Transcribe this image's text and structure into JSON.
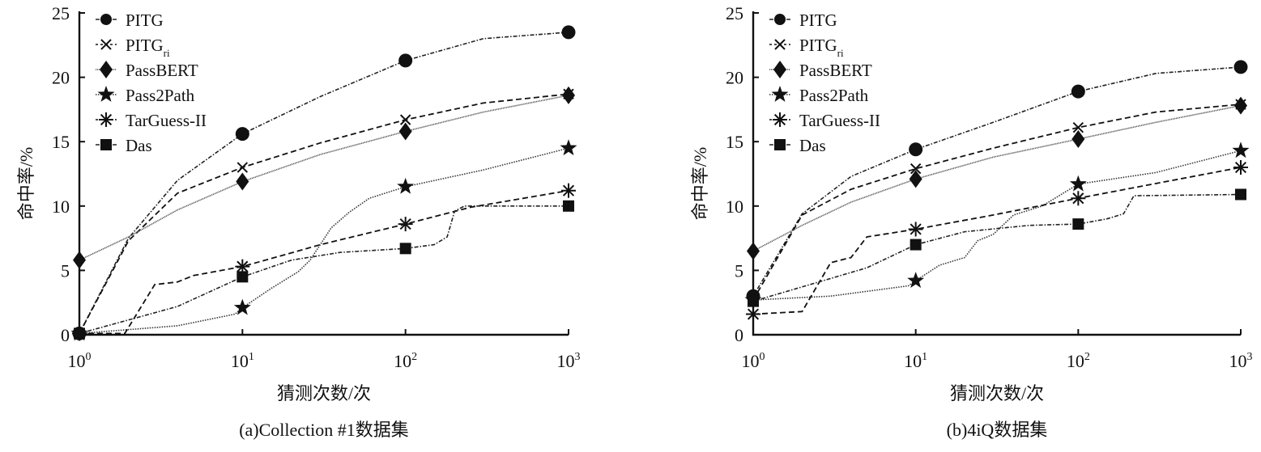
{
  "chart_data": [
    {
      "type": "line",
      "title": "(a)Collection #1数据集",
      "xlabel": "猜测次数/次",
      "ylabel": "命中率/%",
      "xscale": "log",
      "xlim": [
        1,
        1000
      ],
      "ylim": [
        0,
        25
      ],
      "xticks": [
        1,
        10,
        100,
        1000
      ],
      "xtick_labels": [
        {
          "base": "10",
          "exp": "0"
        },
        {
          "base": "10",
          "exp": "1"
        },
        {
          "base": "10",
          "exp": "2"
        },
        {
          "base": "10",
          "exp": "3"
        }
      ],
      "yticks": [
        0,
        5,
        10,
        15,
        20,
        25
      ],
      "ytick_labels": [
        "0",
        "5",
        "10",
        "15",
        "20",
        "25"
      ],
      "grid": false,
      "legend_position": "top-left",
      "x": [
        1,
        10,
        100,
        1000
      ],
      "series": [
        {
          "name": "PITG",
          "sub": "",
          "marker": "circle",
          "style": "dashdot",
          "values": [
            0.1,
            15.6,
            21.3,
            23.5
          ],
          "path": [
            [
              1,
              0.1
            ],
            [
              2,
              7.5
            ],
            [
              4,
              12.0
            ],
            [
              10,
              15.6
            ],
            [
              30,
              18.5
            ],
            [
              100,
              21.3
            ],
            [
              300,
              23.0
            ],
            [
              1000,
              23.5
            ]
          ]
        },
        {
          "name": "PITG",
          "sub": "ri",
          "marker": "x",
          "style": "dashed",
          "values": [
            0.1,
            13.0,
            16.7,
            18.7
          ],
          "path": [
            [
              1,
              0.1
            ],
            [
              2,
              7.3
            ],
            [
              4,
              11.0
            ],
            [
              10,
              13.0
            ],
            [
              30,
              14.9
            ],
            [
              100,
              16.7
            ],
            [
              300,
              18.0
            ],
            [
              1000,
              18.7
            ]
          ]
        },
        {
          "name": "PassBERT",
          "sub": "",
          "marker": "diamond",
          "style": "dotted-solid",
          "values": [
            5.8,
            11.9,
            15.8,
            18.6
          ],
          "path": [
            [
              1,
              5.8
            ],
            [
              2,
              7.6
            ],
            [
              4,
              9.7
            ],
            [
              10,
              11.9
            ],
            [
              30,
              14.0
            ],
            [
              100,
              15.8
            ],
            [
              300,
              17.3
            ],
            [
              1000,
              18.6
            ]
          ]
        },
        {
          "name": "Pass2Path",
          "sub": "",
          "marker": "star",
          "style": "dotted",
          "values": [
            0.1,
            2.1,
            11.5,
            14.5
          ],
          "path": [
            [
              1,
              0.1
            ],
            [
              4,
              0.7
            ],
            [
              9,
              1.6
            ],
            [
              10,
              2.1
            ],
            [
              15,
              3.6
            ],
            [
              22,
              4.9
            ],
            [
              26,
              5.8
            ],
            [
              35,
              8.3
            ],
            [
              45,
              9.5
            ],
            [
              60,
              10.6
            ],
            [
              100,
              11.5
            ],
            [
              300,
              12.8
            ],
            [
              1000,
              14.5
            ]
          ]
        },
        {
          "name": "TarGuess-II",
          "sub": "",
          "marker": "asterisk",
          "style": "dashed",
          "values": [
            0.1,
            5.3,
            8.6,
            11.2
          ],
          "path": [
            [
              1,
              0.1
            ],
            [
              1.9,
              0.1
            ],
            [
              2.9,
              3.9
            ],
            [
              4,
              4.1
            ],
            [
              5,
              4.6
            ],
            [
              10,
              5.3
            ],
            [
              18,
              6.2
            ],
            [
              30,
              7.0
            ],
            [
              100,
              8.6
            ],
            [
              250,
              9.9
            ],
            [
              1000,
              11.2
            ]
          ]
        },
        {
          "name": "Das",
          "sub": "",
          "marker": "square",
          "style": "dashdot",
          "values": [
            0.1,
            4.5,
            6.7,
            10.0
          ],
          "path": [
            [
              1,
              0.1
            ],
            [
              4,
              2.2
            ],
            [
              10,
              4.5
            ],
            [
              20,
              5.8
            ],
            [
              40,
              6.4
            ],
            [
              100,
              6.7
            ],
            [
              150,
              7.0
            ],
            [
              180,
              7.6
            ],
            [
              200,
              9.6
            ],
            [
              230,
              10.0
            ],
            [
              1000,
              10.0
            ]
          ]
        }
      ]
    },
    {
      "type": "line",
      "title": "(b)4iQ数据集",
      "xlabel": "猜测次数/次",
      "ylabel": "命中率/%",
      "xscale": "log",
      "xlim": [
        1,
        1000
      ],
      "ylim": [
        0,
        25
      ],
      "xticks": [
        1,
        10,
        100,
        1000
      ],
      "xtick_labels": [
        {
          "base": "10",
          "exp": "0"
        },
        {
          "base": "10",
          "exp": "1"
        },
        {
          "base": "10",
          "exp": "2"
        },
        {
          "base": "10",
          "exp": "3"
        }
      ],
      "yticks": [
        0,
        5,
        10,
        15,
        20,
        25
      ],
      "ytick_labels": [
        "0",
        "5",
        "10",
        "15",
        "20",
        "25"
      ],
      "grid": false,
      "legend_position": "top-left",
      "x": [
        1,
        10,
        100,
        1000
      ],
      "series": [
        {
          "name": "PITG",
          "sub": "",
          "marker": "circle",
          "style": "dashdot",
          "values": [
            3.0,
            14.4,
            18.9,
            20.8
          ],
          "path": [
            [
              1,
              3.0
            ],
            [
              2,
              9.4
            ],
            [
              4,
              12.3
            ],
            [
              10,
              14.4
            ],
            [
              30,
              16.5
            ],
            [
              100,
              18.9
            ],
            [
              300,
              20.3
            ],
            [
              1000,
              20.8
            ]
          ]
        },
        {
          "name": "PITG",
          "sub": "ri",
          "marker": "x",
          "style": "dashed",
          "values": [
            2.7,
            12.9,
            16.1,
            17.9
          ],
          "path": [
            [
              1,
              2.7
            ],
            [
              2,
              9.3
            ],
            [
              4,
              11.3
            ],
            [
              10,
              12.9
            ],
            [
              30,
              14.5
            ],
            [
              100,
              16.1
            ],
            [
              300,
              17.3
            ],
            [
              1000,
              17.9
            ]
          ]
        },
        {
          "name": "PassBERT",
          "sub": "",
          "marker": "diamond",
          "style": "dotted-solid",
          "values": [
            6.5,
            12.1,
            15.2,
            17.8
          ],
          "path": [
            [
              1,
              6.5
            ],
            [
              2,
              8.5
            ],
            [
              4,
              10.3
            ],
            [
              10,
              12.1
            ],
            [
              30,
              13.8
            ],
            [
              100,
              15.2
            ],
            [
              300,
              16.5
            ],
            [
              1000,
              17.8
            ]
          ]
        },
        {
          "name": "Pass2Path",
          "sub": "",
          "marker": "star",
          "style": "dotted",
          "values": [
            2.7,
            4.2,
            11.7,
            14.3
          ],
          "path": [
            [
              1,
              2.7
            ],
            [
              3,
              3.0
            ],
            [
              9,
              3.8
            ],
            [
              10,
              4.2
            ],
            [
              14,
              5.4
            ],
            [
              20,
              6.0
            ],
            [
              24,
              7.3
            ],
            [
              30,
              7.8
            ],
            [
              40,
              9.3
            ],
            [
              60,
              10.0
            ],
            [
              100,
              11.7
            ],
            [
              300,
              12.6
            ],
            [
              1000,
              14.3
            ]
          ]
        },
        {
          "name": "TarGuess-II",
          "sub": "",
          "marker": "asterisk",
          "style": "dashed",
          "values": [
            1.6,
            8.2,
            10.6,
            13.0
          ],
          "path": [
            [
              1,
              1.6
            ],
            [
              2,
              1.8
            ],
            [
              3,
              5.6
            ],
            [
              4,
              6.0
            ],
            [
              5,
              7.6
            ],
            [
              10,
              8.2
            ],
            [
              30,
              9.3
            ],
            [
              100,
              10.6
            ],
            [
              1000,
              13.0
            ]
          ]
        },
        {
          "name": "Das",
          "sub": "",
          "marker": "square",
          "style": "dashdot",
          "values": [
            2.6,
            7.0,
            8.6,
            10.9
          ],
          "path": [
            [
              1,
              2.6
            ],
            [
              5,
              5.2
            ],
            [
              10,
              7.0
            ],
            [
              20,
              8.0
            ],
            [
              50,
              8.5
            ],
            [
              100,
              8.6
            ],
            [
              150,
              9.0
            ],
            [
              190,
              9.4
            ],
            [
              220,
              10.8
            ],
            [
              1000,
              10.9
            ]
          ]
        }
      ]
    }
  ]
}
